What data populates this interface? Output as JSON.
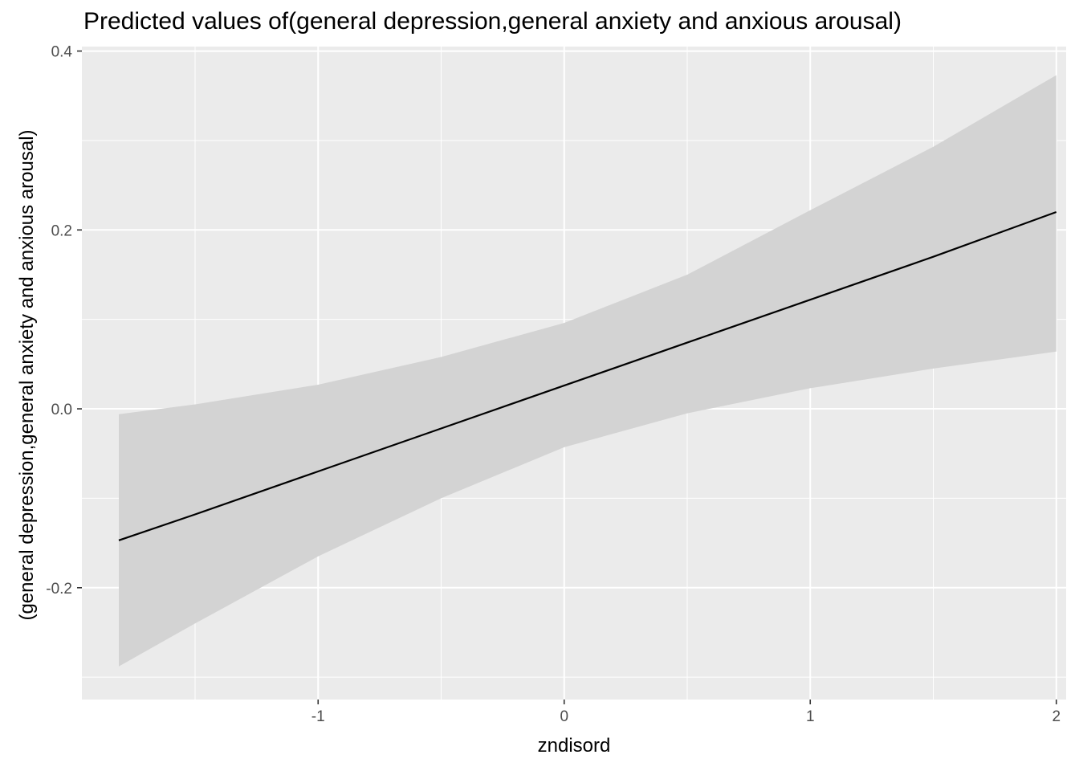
{
  "chart_data": {
    "type": "line",
    "title": "Predicted values of(general depression,general anxiety and anxious arousal)",
    "xlabel": "zndisord",
    "ylabel": "(general depression,general anxiety and anxious arousal)",
    "xlim": [
      -1.96,
      2.04
    ],
    "ylim": [
      -0.325,
      0.405
    ],
    "x_ticks": [
      -1,
      0,
      1,
      2
    ],
    "x_tick_labels": [
      "-1",
      "0",
      "1",
      "2"
    ],
    "y_ticks": [
      -0.2,
      0.0,
      0.2,
      0.4
    ],
    "y_tick_labels": [
      "-0.2",
      "0.0",
      "0.2",
      "0.4"
    ],
    "grid": true,
    "legend": "none",
    "series": [
      {
        "x": [
          -1.81,
          -1.5,
          -1.0,
          -0.5,
          0.0,
          0.5,
          1.0,
          1.5,
          2.0
        ],
        "y": [
          -0.147,
          -0.118,
          -0.07,
          -0.022,
          0.026,
          0.074,
          0.122,
          0.17,
          0.22
        ],
        "ci_lower": [
          -0.288,
          -0.24,
          -0.165,
          -0.1,
          -0.043,
          -0.005,
          0.023,
          0.045,
          0.064
        ],
        "ci_upper": [
          -0.006,
          0.005,
          0.027,
          0.058,
          0.096,
          0.15,
          0.222,
          0.293,
          0.373
        ]
      }
    ],
    "colors": {
      "panel": "#ebebeb",
      "grid": "#ffffff",
      "line": "#000000",
      "ribbon": "#d3d3d3"
    }
  }
}
